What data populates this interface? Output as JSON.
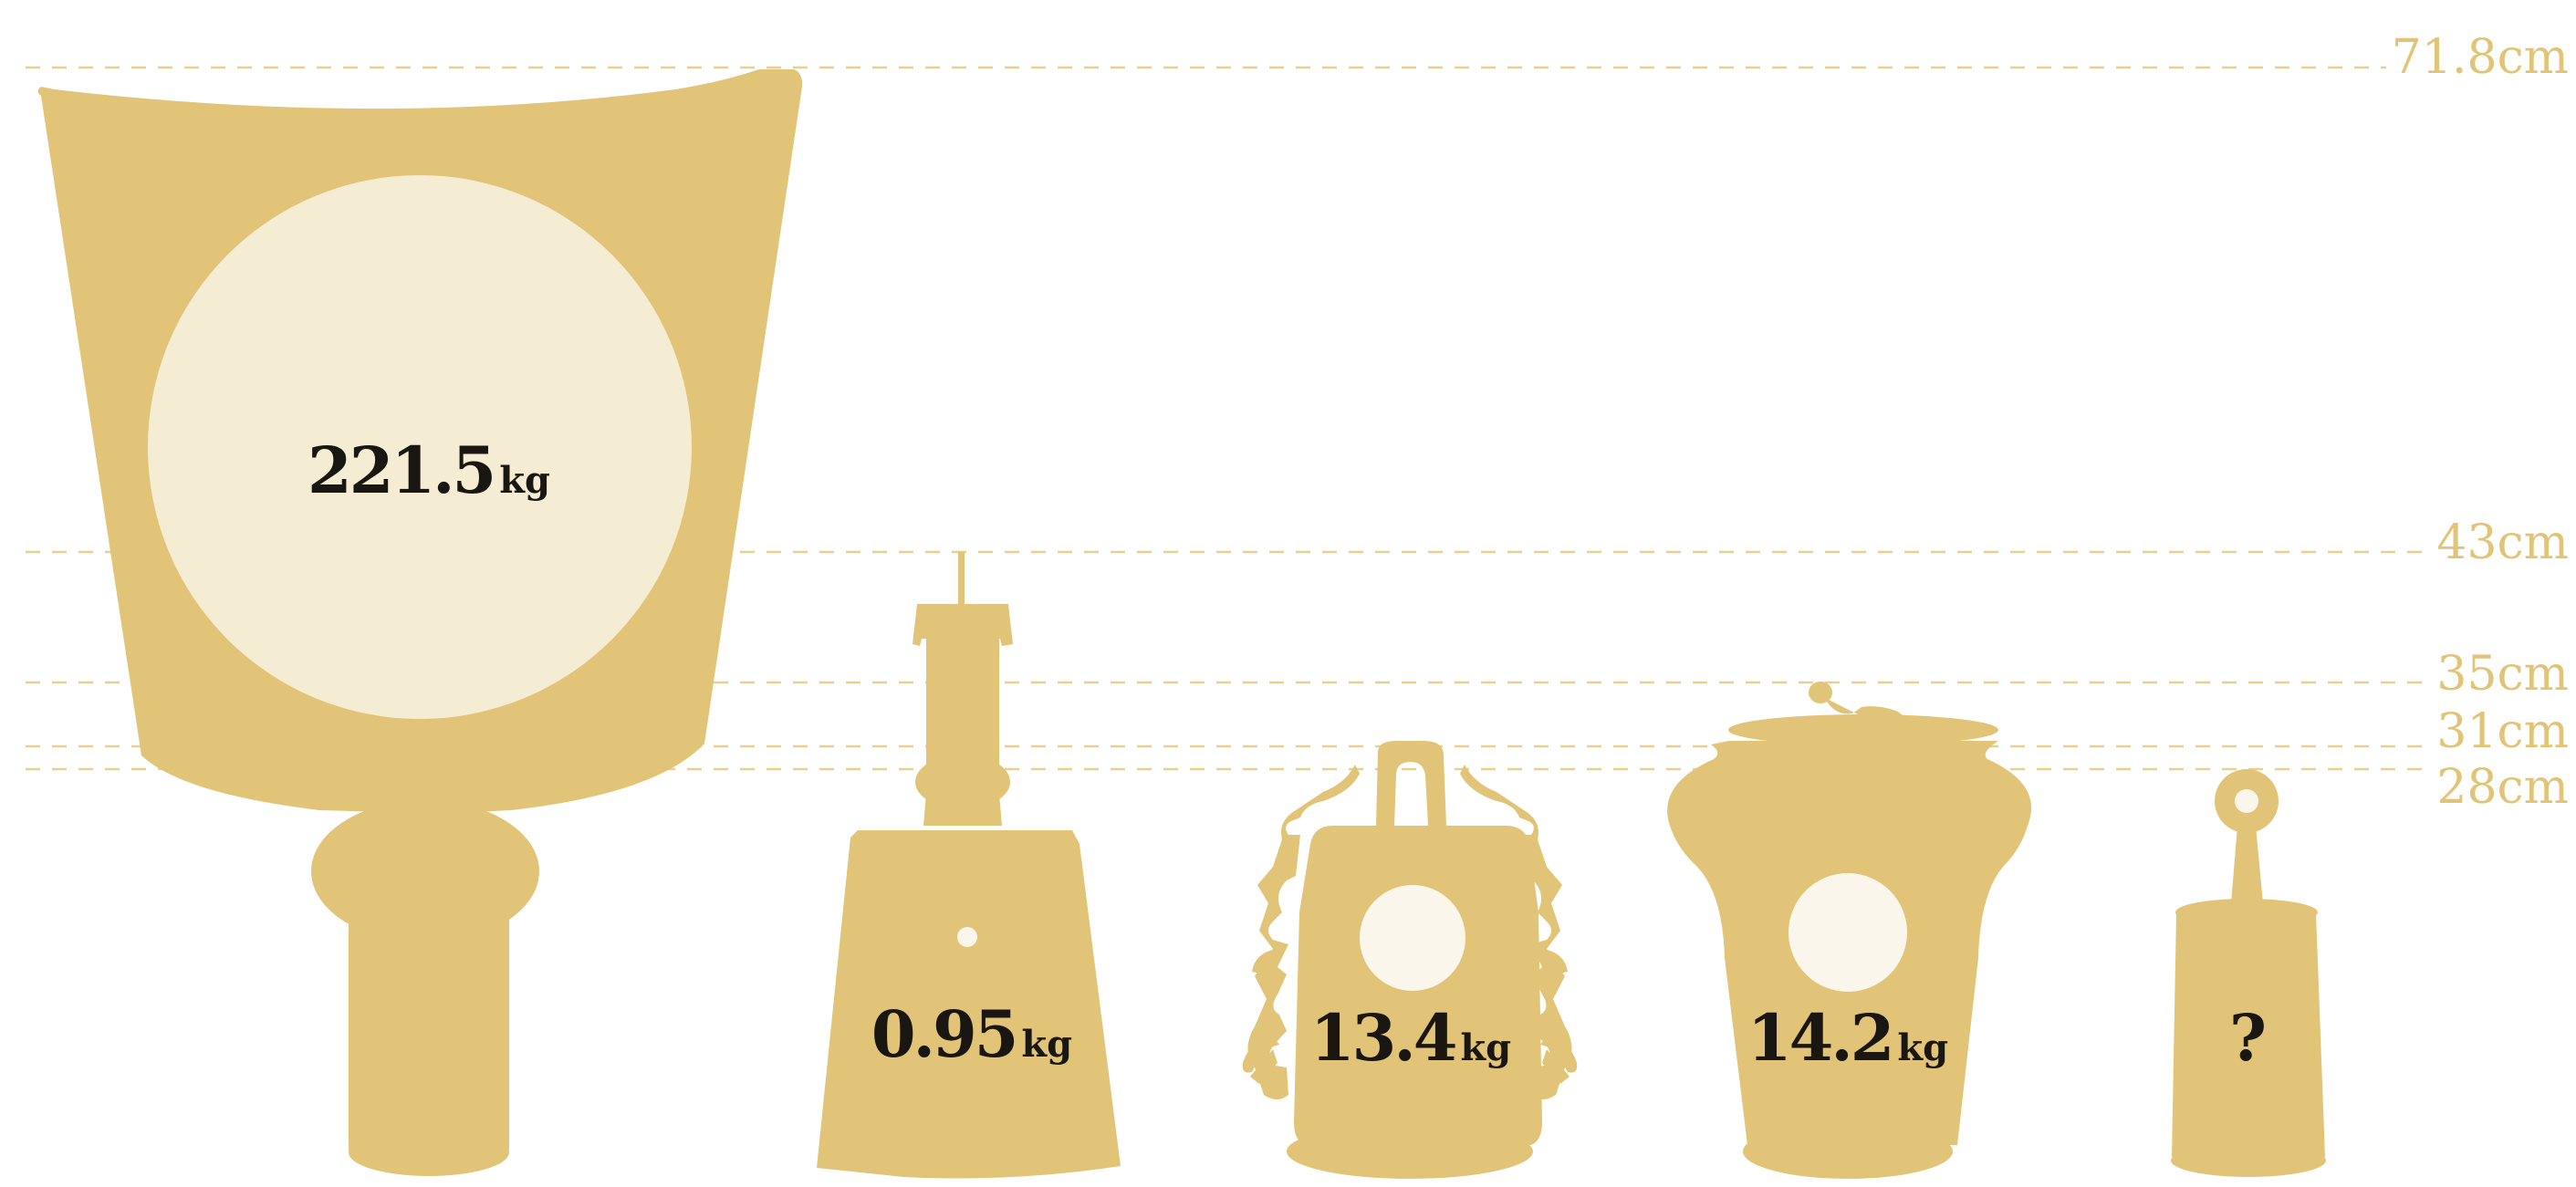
{
  "colors": {
    "silhouette": "#E1C477",
    "disc_light": "#F5ECD4",
    "disc_lighter": "#FBF6EB",
    "text_dark": "#1A1612",
    "guide": "#E8D08F"
  },
  "height_markers": [
    {
      "value": 71.8,
      "label": "71.8cm"
    },
    {
      "value": 43,
      "label": "43cm"
    },
    {
      "value": 35,
      "label": "35cm"
    },
    {
      "value": 31,
      "label": "31cm"
    },
    {
      "value": 28,
      "label": "28cm"
    }
  ],
  "objects": [
    {
      "id": "bell-1",
      "weight": "221.5",
      "unit": "kg"
    },
    {
      "id": "bell-2",
      "weight": "0.95",
      "unit": "kg"
    },
    {
      "id": "bell-3",
      "weight": "13.4",
      "unit": "kg"
    },
    {
      "id": "bell-4",
      "weight": "14.2",
      "unit": "kg"
    },
    {
      "id": "bell-5",
      "weight": "?",
      "unit": ""
    }
  ]
}
